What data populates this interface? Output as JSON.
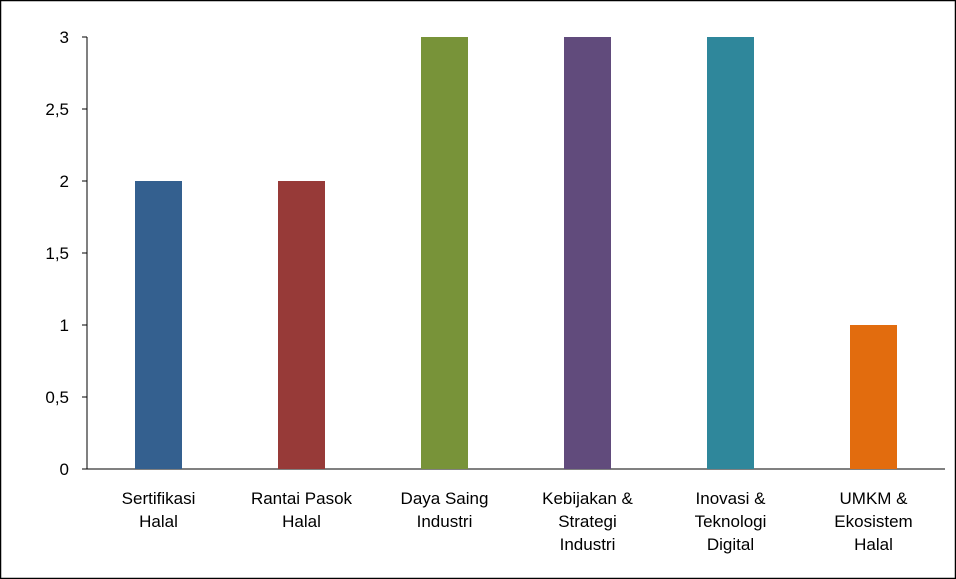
{
  "chart_data": {
    "type": "bar",
    "categories": [
      [
        "Sertifikasi",
        "Halal"
      ],
      [
        "Rantai Pasok",
        "Halal"
      ],
      [
        "Daya Saing",
        "Industri"
      ],
      [
        "Kebijakan &",
        "Strategi",
        "Industri"
      ],
      [
        "Inovasi &",
        "Teknologi",
        "Digital"
      ],
      [
        "UMKM &",
        "Ekosistem",
        "Halal"
      ]
    ],
    "values": [
      2,
      2,
      3,
      3,
      3,
      1
    ],
    "bar_colors": [
      "#34608F",
      "#973A38",
      "#789339",
      "#614B7C",
      "#2F879B",
      "#E26C0E"
    ],
    "ylim": [
      0,
      3
    ],
    "yticks": [
      "0",
      "0,5",
      "1",
      "1,5",
      "2",
      "2,5",
      "3"
    ],
    "ytick_values": [
      0,
      0.5,
      1,
      1.5,
      2,
      2.5,
      3
    ],
    "grid": false,
    "legend": "none",
    "title": "",
    "xlabel": "",
    "ylabel": ""
  }
}
